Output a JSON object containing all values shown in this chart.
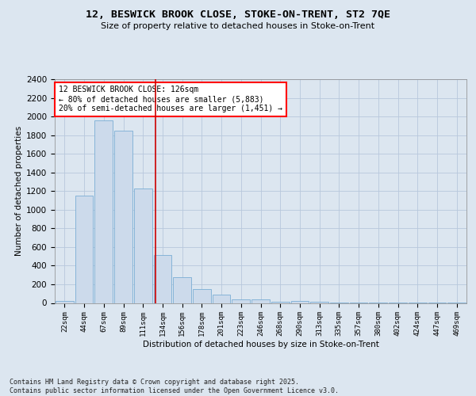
{
  "title_line1": "12, BESWICK BROOK CLOSE, STOKE-ON-TRENT, ST2 7QE",
  "title_line2": "Size of property relative to detached houses in Stoke-on-Trent",
  "xlabel": "Distribution of detached houses by size in Stoke-on-Trent",
  "ylabel": "Number of detached properties",
  "bins": [
    "22sqm",
    "44sqm",
    "67sqm",
    "89sqm",
    "111sqm",
    "134sqm",
    "156sqm",
    "178sqm",
    "201sqm",
    "223sqm",
    "246sqm",
    "268sqm",
    "290sqm",
    "313sqm",
    "335sqm",
    "357sqm",
    "380sqm",
    "402sqm",
    "424sqm",
    "447sqm",
    "469sqm"
  ],
  "values": [
    25,
    1155,
    1960,
    1850,
    1230,
    515,
    275,
    150,
    90,
    42,
    42,
    15,
    20,
    10,
    5,
    3,
    2,
    2,
    2,
    2,
    2
  ],
  "bar_color": "#ccdaeb",
  "bar_edge_color": "#7aadd4",
  "vline_color": "#cc0000",
  "annotation_text": "12 BESWICK BROOK CLOSE: 126sqm\n← 80% of detached houses are smaller (5,883)\n20% of semi-detached houses are larger (1,451) →",
  "ylim": [
    0,
    2400
  ],
  "yticks": [
    0,
    200,
    400,
    600,
    800,
    1000,
    1200,
    1400,
    1600,
    1800,
    2000,
    2200,
    2400
  ],
  "grid_color": "#b8c8dc",
  "footer_line1": "Contains HM Land Registry data © Crown copyright and database right 2025.",
  "footer_line2": "Contains public sector information licensed under the Open Government Licence v3.0.",
  "bg_color": "#dce6f0",
  "plot_bg_color": "#dce6f0"
}
